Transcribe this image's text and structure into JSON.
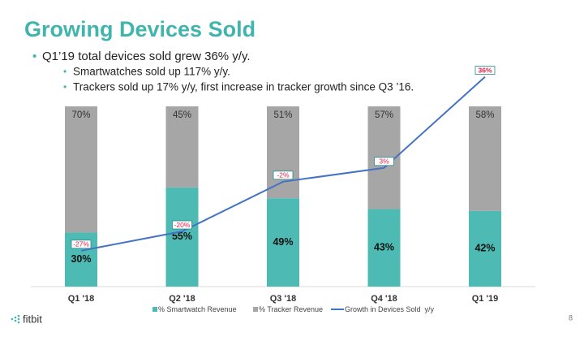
{
  "chart_data": {
    "type": "bar",
    "title": "Growing Devices Sold",
    "bullets": [
      "Q1’19 total devices sold grew 36% y/y.",
      "Smartwatches sold up 117% y/y.",
      "Trackers sold up 17% y/y, first increase in tracker growth since Q3 ’16."
    ],
    "categories": [
      "Q1 '18",
      "Q2 '18",
      "Q3 '18",
      "Q4 '18",
      "Q1 '19"
    ],
    "stacked": true,
    "series": [
      {
        "name": "% Smartwatch Revenue",
        "color": "#4dbbb3",
        "values": [
          30,
          55,
          49,
          43,
          42
        ],
        "value_labels": [
          "30%",
          "55%",
          "49%",
          "43%",
          "42%"
        ]
      },
      {
        "name": "% Tracker Revenue",
        "color": "#a6a6a6",
        "values": [
          70,
          45,
          51,
          57,
          58
        ],
        "value_labels": [
          "70%",
          "45%",
          "51%",
          "57%",
          "58%"
        ]
      },
      {
        "name": "Growth in Devices Sold  y/y",
        "type": "line",
        "axis": "y2",
        "color": "#4472c4",
        "values": [
          -27,
          -20,
          -2,
          3,
          36
        ],
        "value_labels": [
          "-27%",
          "-20%",
          "-2%",
          "3%",
          "36%"
        ]
      }
    ],
    "ylim": [
      0,
      100
    ],
    "y2lim": [
      -40,
      40
    ],
    "footer": "fitbit",
    "page_number": "8"
  }
}
